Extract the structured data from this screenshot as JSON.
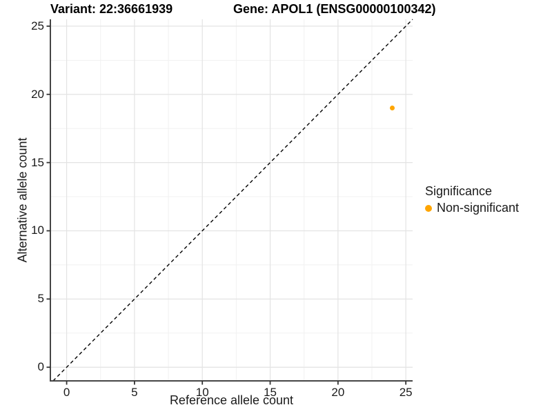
{
  "titles": {
    "variant": "Variant: 22:36661939",
    "gene": "Gene: APOL1 (ENSG00000100342)"
  },
  "axes": {
    "x": {
      "label": "Reference allele count"
    },
    "y": {
      "label": "Alternative allele count"
    }
  },
  "legend": {
    "title": "Significance",
    "items": [
      {
        "label": "Non-significant",
        "color": "#FFA500",
        "marker": "circle"
      }
    ]
  },
  "chart_data": {
    "type": "scatter",
    "title": "Variant: 22:36661939 — Gene: APOL1 (ENSG00000100342)",
    "xlabel": "Reference allele count",
    "ylabel": "Alternative allele count",
    "xlim": [
      -1.2,
      25.5
    ],
    "ylim": [
      -1.0,
      25.5
    ],
    "x_ticks": [
      0,
      5,
      10,
      15,
      20,
      25
    ],
    "y_ticks": [
      0,
      5,
      10,
      15,
      20,
      25
    ],
    "grid": {
      "major": true,
      "minor": true,
      "major_color": "#E3E3E3",
      "minor_color": "#F1F1F1"
    },
    "legend_position": "right",
    "series": [
      {
        "name": "Non-significant",
        "color": "#FFA500",
        "marker_radius": 3.5,
        "points": [
          {
            "x": 24,
            "y": 19
          }
        ]
      }
    ],
    "reference_line": {
      "kind": "identity",
      "equation": "y = x",
      "style": "dashed",
      "color": "#000000"
    },
    "style": {
      "axis_line_color": "#454545",
      "tick_color": "#333333",
      "background": "#FFFFFF"
    }
  }
}
